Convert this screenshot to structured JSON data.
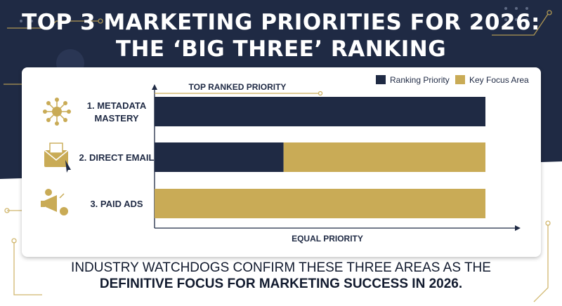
{
  "title": {
    "line1": "TOP 3 MARKETING PRIORITIES FOR 2026:",
    "line2": "THE ‘BIG THREE’ RANKING"
  },
  "chart_data": {
    "type": "bar",
    "orientation": "horizontal",
    "stacked": true,
    "categories": [
      "1. METADATA MASTERY",
      "2. DIRECT EMAIL",
      "3. PAID ADS"
    ],
    "category_lines": [
      [
        "1. METADATA",
        "MASTERY"
      ],
      [
        "2. DIRECT EMAIL"
      ],
      [
        "3. PAID ADS"
      ]
    ],
    "category_icons": [
      "network-gear-icon",
      "email-envelope-icon",
      "megaphone-icon"
    ],
    "series": [
      {
        "name": "Ranking Priority",
        "color": "#1f2a44",
        "values": [
          100,
          39,
          0
        ]
      },
      {
        "name": "Key Focus Area",
        "color": "#c9ab56",
        "values": [
          0,
          61,
          100
        ]
      }
    ],
    "xlim": [
      0,
      100
    ],
    "top_label": "TOP RANKED PRIORITY",
    "xlabel": "EQUAL PRIORITY",
    "legend_position": "top-right",
    "grid": false
  },
  "footer": {
    "line1": "INDUSTRY WATCHDOGS CONFIRM THESE THREE AREAS AS THE",
    "line2": "DEFINITIVE FOCUS FOR MARKETING SUCCESS IN 2026."
  },
  "colors": {
    "navy": "#1f2a44",
    "gold": "#c9ab56",
    "background": "#ffffff"
  }
}
